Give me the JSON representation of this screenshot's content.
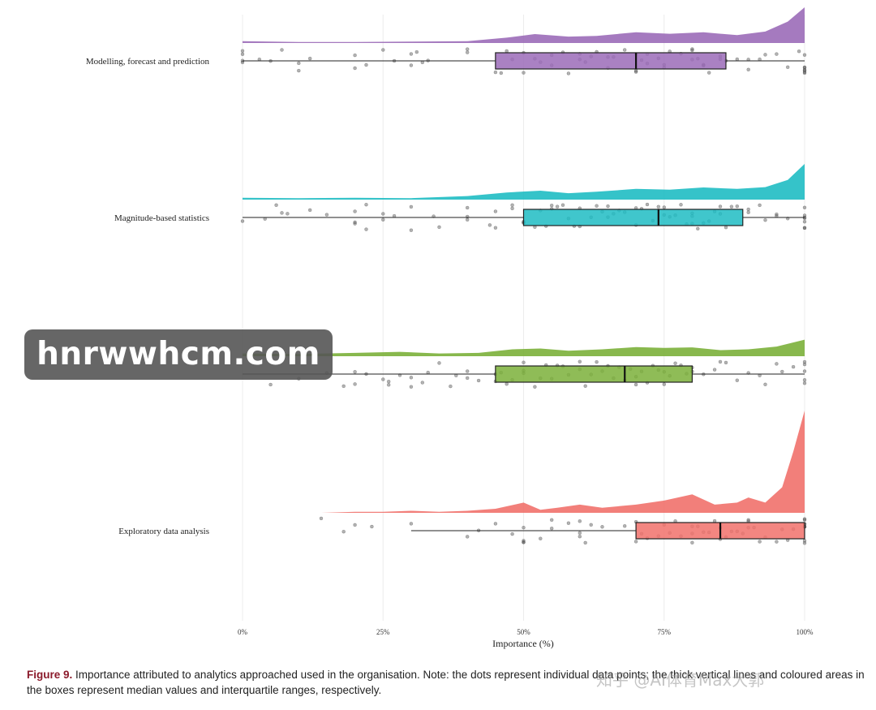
{
  "chart_data": {
    "type": "raincloud",
    "xlabel": "Importance (%)",
    "xlim": [
      0,
      100
    ],
    "x_ticks": [
      "0%",
      "25%",
      "50%",
      "75%",
      "100%"
    ],
    "x_tick_values": [
      0,
      25,
      50,
      75,
      100
    ],
    "grid": "vertical",
    "categories": [
      {
        "name": "Modelling, forecast and prediction",
        "color": "#9b6bb8",
        "box": {
          "whisker_low": 0,
          "q1": 45,
          "median": 70,
          "q3": 86,
          "whisker_high": 100
        },
        "density": [
          [
            0,
            0.05
          ],
          [
            10,
            0.03
          ],
          [
            20,
            0.03
          ],
          [
            30,
            0.04
          ],
          [
            40,
            0.05
          ],
          [
            47,
            0.15
          ],
          [
            52,
            0.25
          ],
          [
            58,
            0.18
          ],
          [
            63,
            0.2
          ],
          [
            70,
            0.3
          ],
          [
            76,
            0.26
          ],
          [
            82,
            0.3
          ],
          [
            88,
            0.22
          ],
          [
            93,
            0.32
          ],
          [
            97,
            0.6
          ],
          [
            100,
            1.0
          ]
        ],
        "points": [
          0,
          0,
          0,
          0,
          3,
          5,
          7,
          10,
          10,
          12,
          20,
          20,
          22,
          25,
          27,
          30,
          30,
          31,
          32,
          33,
          40,
          40,
          45,
          46,
          47,
          48,
          50,
          50,
          52,
          53,
          55,
          55,
          57,
          58,
          60,
          60,
          61,
          62,
          63,
          65,
          65,
          66,
          68,
          70,
          70,
          70,
          71,
          72,
          72,
          74,
          75,
          75,
          76,
          78,
          80,
          80,
          80,
          81,
          82,
          82,
          83,
          85,
          85,
          86,
          88,
          90,
          90,
          92,
          93,
          95,
          97,
          99,
          100,
          100,
          100,
          100,
          100,
          100,
          100
        ]
      },
      {
        "name": "Magnitude-based statistics",
        "color": "#1fbcc3",
        "box": {
          "whisker_low": 0,
          "q1": 50,
          "median": 74,
          "q3": 89,
          "whisker_high": 100
        },
        "density": [
          [
            0,
            0.05
          ],
          [
            10,
            0.04
          ],
          [
            20,
            0.05
          ],
          [
            30,
            0.04
          ],
          [
            40,
            0.1
          ],
          [
            47,
            0.2
          ],
          [
            53,
            0.25
          ],
          [
            58,
            0.18
          ],
          [
            63,
            0.22
          ],
          [
            70,
            0.3
          ],
          [
            76,
            0.28
          ],
          [
            82,
            0.34
          ],
          [
            88,
            0.3
          ],
          [
            93,
            0.35
          ],
          [
            97,
            0.55
          ],
          [
            100,
            1.0
          ]
        ],
        "points": [
          0,
          4,
          6,
          7,
          8,
          12,
          15,
          20,
          20,
          20,
          22,
          22,
          25,
          25,
          27,
          30,
          30,
          34,
          35,
          40,
          40,
          40,
          44,
          45,
          45,
          48,
          48,
          50,
          50,
          50,
          52,
          53,
          54,
          55,
          55,
          56,
          57,
          58,
          59,
          60,
          60,
          62,
          63,
          64,
          65,
          65,
          66,
          67,
          68,
          70,
          70,
          71,
          72,
          73,
          74,
          75,
          75,
          76,
          77,
          78,
          79,
          80,
          80,
          80,
          81,
          82,
          83,
          84,
          85,
          85,
          86,
          87,
          88,
          90,
          90,
          92,
          93,
          95,
          95,
          97,
          100,
          100,
          100,
          100,
          100,
          100,
          100
        ]
      },
      {
        "name": "",
        "color": "#7bb03a",
        "box": {
          "whisker_low": 0,
          "q1": 45,
          "median": 68,
          "q3": 80,
          "whisker_high": 100
        },
        "density": [
          [
            0,
            0.1
          ],
          [
            10,
            0.08
          ],
          [
            20,
            0.12
          ],
          [
            28,
            0.16
          ],
          [
            35,
            0.1
          ],
          [
            42,
            0.12
          ],
          [
            48,
            0.25
          ],
          [
            53,
            0.28
          ],
          [
            58,
            0.2
          ],
          [
            64,
            0.25
          ],
          [
            70,
            0.33
          ],
          [
            75,
            0.3
          ],
          [
            80,
            0.32
          ],
          [
            85,
            0.22
          ],
          [
            90,
            0.25
          ],
          [
            95,
            0.35
          ],
          [
            100,
            0.6
          ]
        ],
        "points": [
          5,
          10,
          15,
          18,
          20,
          20,
          22,
          25,
          26,
          26,
          28,
          30,
          30,
          32,
          33,
          35,
          37,
          38,
          40,
          40,
          42,
          45,
          45,
          46,
          47,
          48,
          50,
          50,
          50,
          52,
          53,
          54,
          55,
          56,
          57,
          58,
          60,
          60,
          61,
          62,
          63,
          64,
          65,
          66,
          67,
          68,
          69,
          70,
          70,
          71,
          72,
          73,
          74,
          75,
          75,
          76,
          77,
          78,
          79,
          80,
          80,
          82,
          84,
          85,
          86,
          88,
          90,
          92,
          93,
          95,
          96,
          98,
          100,
          100,
          100,
          100,
          100
        ]
      },
      {
        "name": "Exploratory data analysis",
        "color": "#f1716b",
        "box": {
          "whisker_low": 30,
          "q1": 70,
          "median": 85,
          "q3": 100,
          "whisker_high": 100
        },
        "density": [
          [
            14,
            0
          ],
          [
            20,
            0.01
          ],
          [
            25,
            0.01
          ],
          [
            30,
            0.02
          ],
          [
            35,
            0.01
          ],
          [
            40,
            0.02
          ],
          [
            45,
            0.04
          ],
          [
            50,
            0.1
          ],
          [
            53,
            0.03
          ],
          [
            56,
            0.05
          ],
          [
            60,
            0.08
          ],
          [
            64,
            0.05
          ],
          [
            70,
            0.08
          ],
          [
            75,
            0.12
          ],
          [
            80,
            0.18
          ],
          [
            84,
            0.08
          ],
          [
            88,
            0.1
          ],
          [
            90,
            0.15
          ],
          [
            93,
            0.1
          ],
          [
            96,
            0.25
          ],
          [
            98,
            0.6
          ],
          [
            100,
            1.0
          ]
        ],
        "points": [
          14,
          18,
          20,
          23,
          30,
          40,
          42,
          45,
          48,
          50,
          50,
          50,
          50,
          53,
          55,
          55,
          58,
          60,
          60,
          60,
          61,
          62,
          64,
          68,
          70,
          70,
          71,
          72,
          74,
          75,
          76,
          77,
          78,
          80,
          80,
          80,
          81,
          82,
          83,
          84,
          85,
          85,
          86,
          87,
          88,
          89,
          90,
          90,
          90,
          91,
          92,
          93,
          95,
          96,
          97,
          98,
          100,
          100,
          100,
          100,
          100,
          100,
          100,
          100,
          100
        ]
      }
    ]
  },
  "caption": {
    "figure_label": "Figure 9.",
    "text": " Importance attributed to analytics approached used in the organisation. Note: the dots represent individual data points; the thick vertical lines and coloured areas in the boxes represent median values and interquartile ranges, respectively."
  },
  "watermark": {
    "text": "hnrwwhcm.com",
    "corner_text": "知乎 @AI体育Max大郭"
  }
}
